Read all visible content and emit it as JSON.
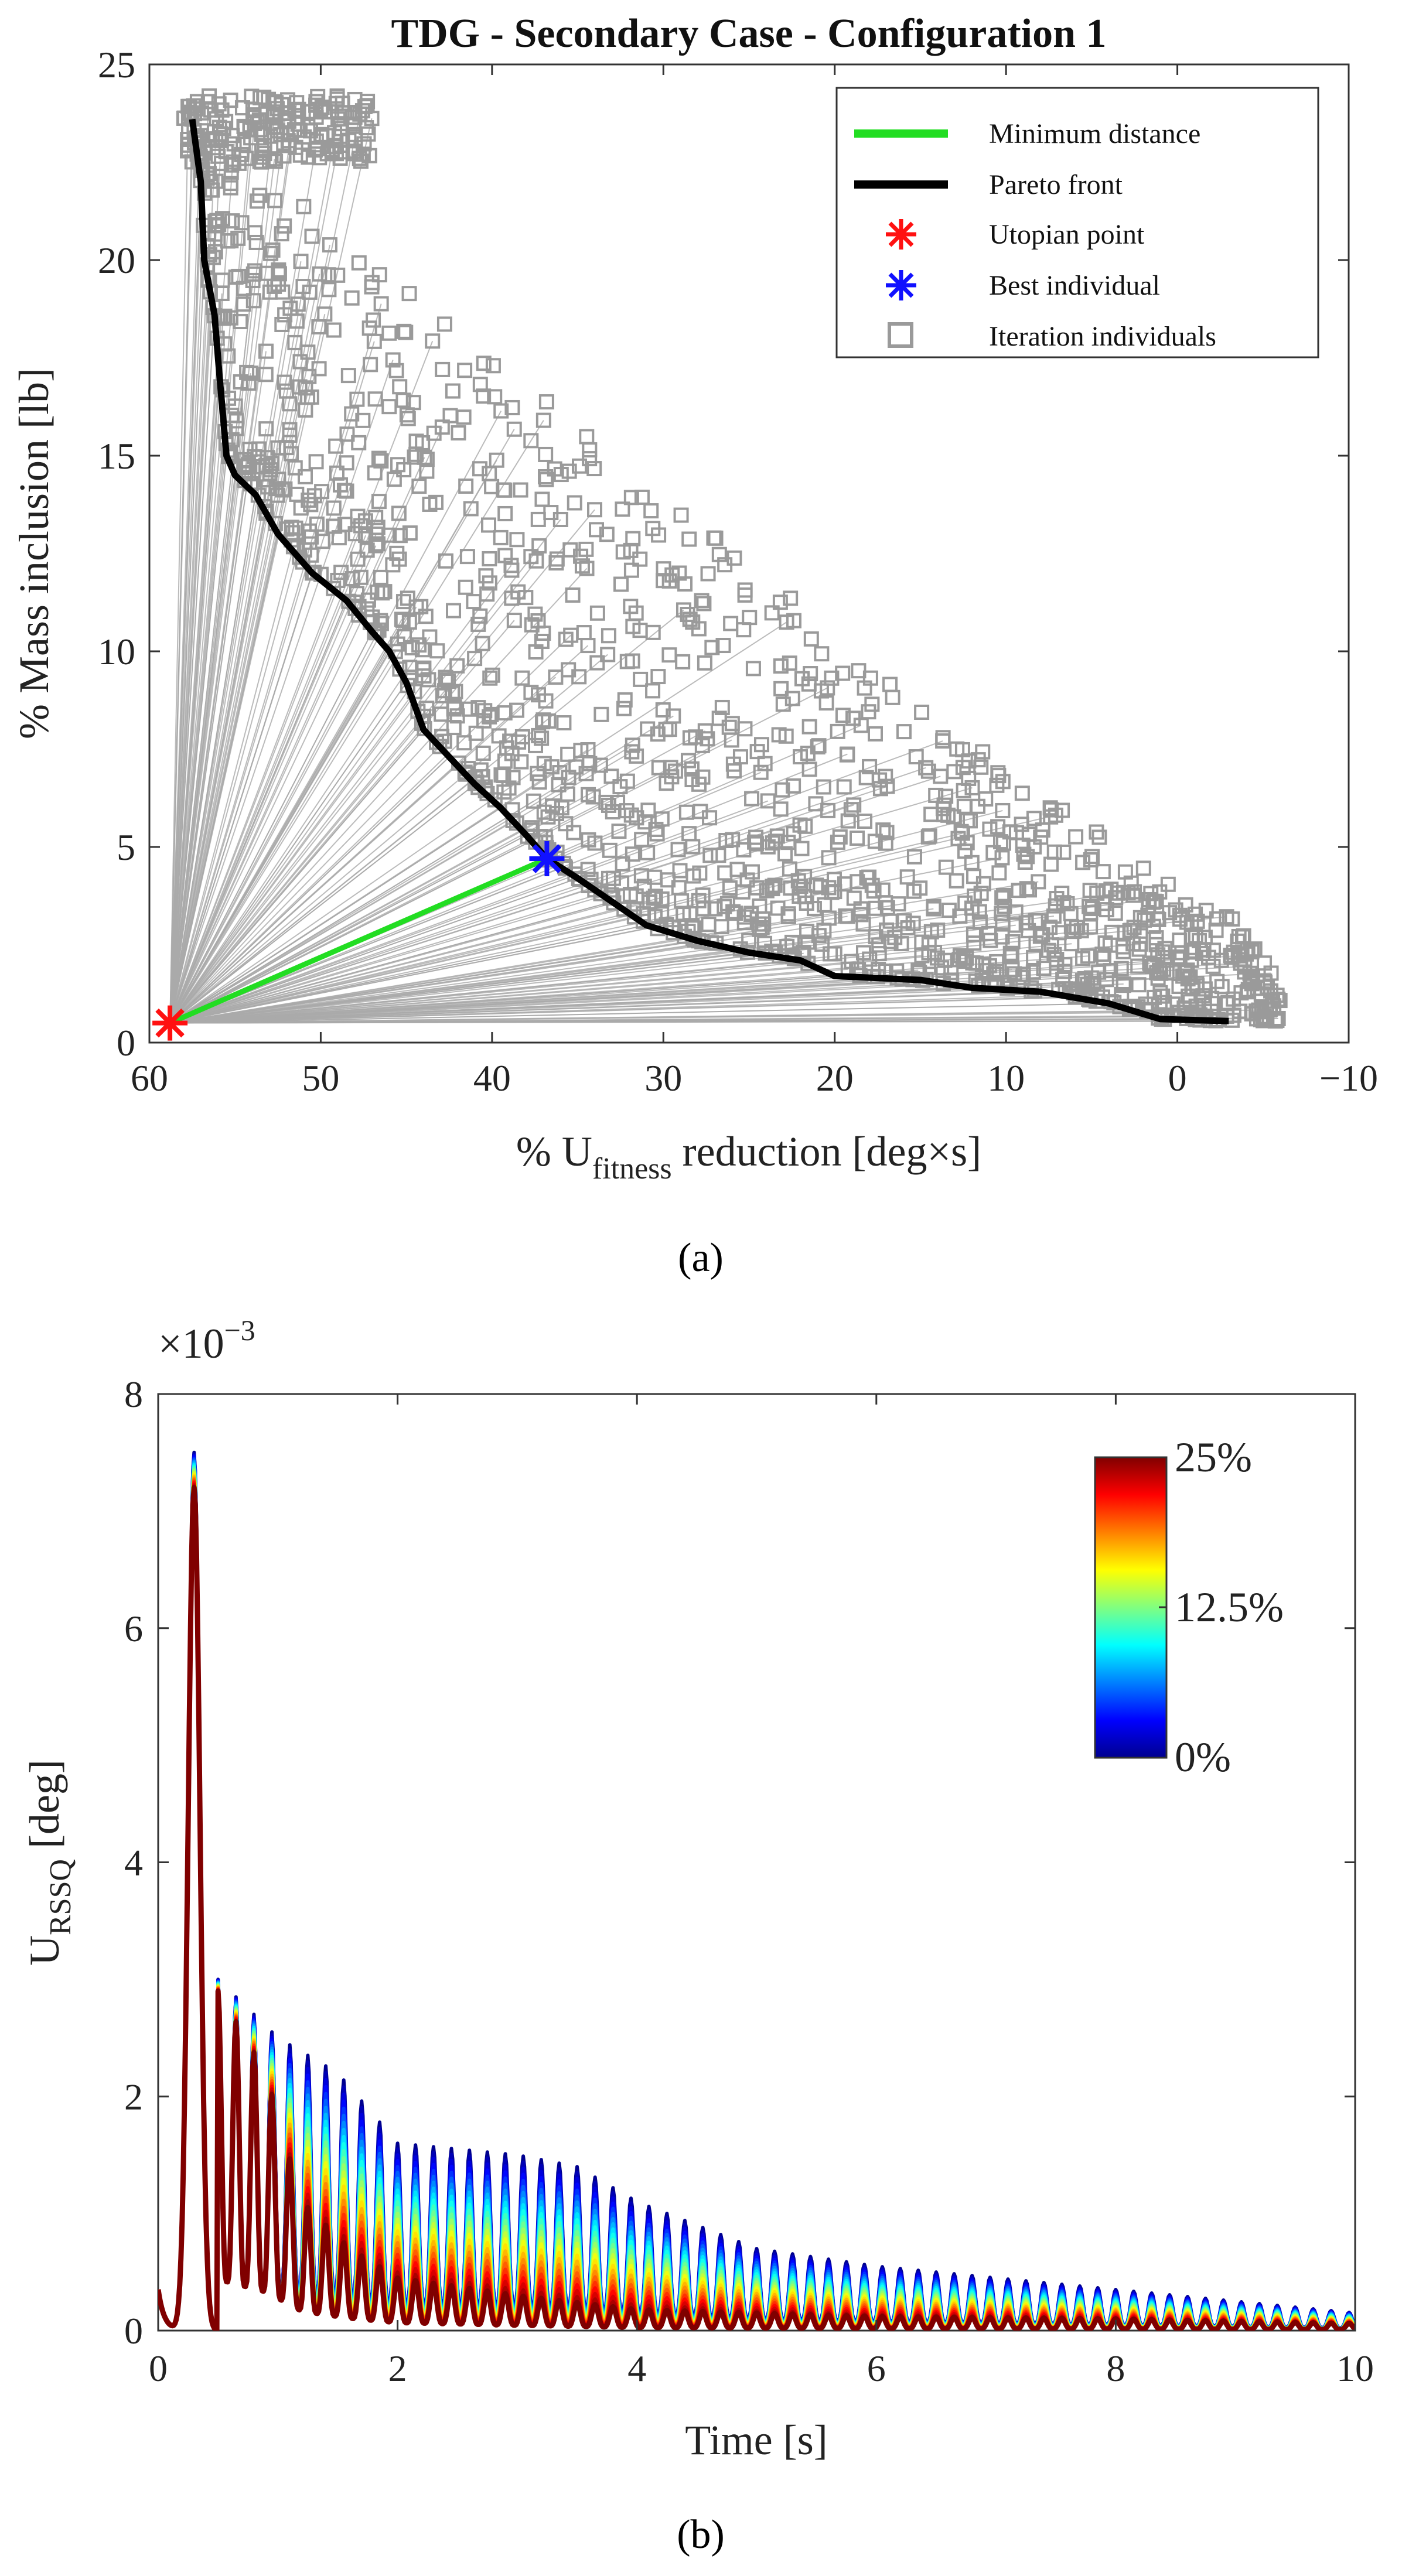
{
  "chart_data": [
    {
      "id": "a",
      "type": "scatter",
      "title": "TDG - Secondary Case - Configuration 1",
      "xlabel_prefix": "% U",
      "xlabel_sub": "fitness",
      "xlabel_suffix": " reduction [deg×s]",
      "ylabel": "% Mass inclusion [lb]",
      "xlim": [
        60,
        -10
      ],
      "ylim": [
        0,
        25
      ],
      "xticks": [
        60,
        50,
        40,
        30,
        20,
        10,
        0,
        -10
      ],
      "xtick_labels": [
        "60",
        "50",
        "40",
        "30",
        "20",
        "10",
        "0",
        "−10"
      ],
      "yticks": [
        0,
        5,
        10,
        15,
        20,
        25
      ],
      "ytick_labels": [
        "0",
        "5",
        "10",
        "15",
        "20",
        "25"
      ],
      "legend": {
        "position": "top-right",
        "entries": [
          "Minimum distance",
          "Pareto front",
          "Utopian point",
          "Best individual",
          "Iteration individuals"
        ]
      },
      "colors": {
        "minimum_distance": "#22dd22",
        "pareto": "#000000",
        "utopian": "#ff1111",
        "best": "#1111ff",
        "individuals": "#9a9a9a",
        "rays": "#aaaaaa"
      },
      "utopian_point": {
        "x": 58.8,
        "y": 0.5
      },
      "best_individual": {
        "x": 36.8,
        "y": 4.7
      },
      "pareto_front": [
        [
          57.5,
          23.6
        ],
        [
          57.0,
          22.0
        ],
        [
          56.8,
          20.0
        ],
        [
          56.2,
          18.6
        ],
        [
          55.9,
          17.0
        ],
        [
          55.5,
          15.0
        ],
        [
          55.0,
          14.5
        ],
        [
          53.8,
          14.0
        ],
        [
          52.5,
          13.0
        ],
        [
          50.5,
          12.0
        ],
        [
          48.5,
          11.3
        ],
        [
          47.0,
          10.5
        ],
        [
          46.0,
          10.0
        ],
        [
          45.0,
          9.2
        ],
        [
          44.0,
          8.0
        ],
        [
          42.5,
          7.3
        ],
        [
          41.0,
          6.6
        ],
        [
          39.5,
          6.0
        ],
        [
          38.0,
          5.3
        ],
        [
          36.8,
          4.7
        ],
        [
          35.0,
          4.2
        ],
        [
          33.0,
          3.6
        ],
        [
          31.0,
          3.0
        ],
        [
          28.0,
          2.6
        ],
        [
          25.0,
          2.3
        ],
        [
          22.0,
          2.1
        ],
        [
          20.0,
          1.7
        ],
        [
          15.0,
          1.6
        ],
        [
          12.0,
          1.4
        ],
        [
          8.0,
          1.3
        ],
        [
          4.0,
          1.0
        ],
        [
          1.0,
          0.6
        ],
        [
          -3.0,
          0.55
        ]
      ],
      "individuals_model": {
        "count": 1400,
        "x_range": [
          -6,
          58
        ],
        "y_max": 24.2,
        "lower_bound": "pareto_front",
        "upper_envelope": [
          [
            58,
            24.2
          ],
          [
            50,
            21.0
          ],
          [
            40,
            17.5
          ],
          [
            30,
            14.0
          ],
          [
            20,
            10.5
          ],
          [
            10,
            7.0
          ],
          [
            0,
            4.0
          ],
          [
            -6,
            2.5
          ]
        ]
      }
    },
    {
      "id": "b",
      "type": "line",
      "xlabel": "Time [s]",
      "ylabel_main": "U",
      "ylabel_sub": "RSSQ",
      "ylabel_suffix": " [deg]",
      "exponent_label": "×10",
      "exponent_power": "−3",
      "xlim": [
        0,
        10
      ],
      "ylim": [
        0,
        8
      ],
      "xticks": [
        0,
        2,
        4,
        6,
        8,
        10
      ],
      "xtick_labels": [
        "0",
        "2",
        "4",
        "6",
        "8",
        "10"
      ],
      "yticks": [
        0,
        2,
        4,
        6,
        8
      ],
      "ytick_labels": [
        "0",
        "2",
        "4",
        "6",
        "8"
      ],
      "series_count": 24,
      "series_param_range": [
        "0%",
        "25%"
      ],
      "model": {
        "first_peak": {
          "t": 0.3,
          "value": 7.5
        },
        "oscillation_period_s": 0.15,
        "envelope_0pct": [
          [
            0.5,
            3.0
          ],
          [
            1.0,
            2.5
          ],
          [
            1.5,
            2.2
          ],
          [
            2.0,
            1.6
          ],
          [
            3.0,
            1.5
          ],
          [
            3.5,
            1.4
          ],
          [
            4.0,
            1.1
          ],
          [
            5.0,
            0.7
          ],
          [
            6.0,
            0.55
          ],
          [
            7.0,
            0.45
          ],
          [
            8.0,
            0.35
          ],
          [
            9.0,
            0.25
          ],
          [
            10.0,
            0.15
          ]
        ],
        "envelope_25pct": [
          [
            0.5,
            2.9
          ],
          [
            0.9,
            2.2
          ],
          [
            1.2,
            1.1
          ],
          [
            1.6,
            0.7
          ],
          [
            2.0,
            0.45
          ],
          [
            3.0,
            0.3
          ],
          [
            4.0,
            0.18
          ],
          [
            6.0,
            0.12
          ],
          [
            8.0,
            0.1
          ],
          [
            10.0,
            0.06
          ]
        ]
      },
      "colorbar": {
        "labels": [
          "25%",
          "12.5%",
          "0%"
        ],
        "colors": [
          "#00008f",
          "#0000ff",
          "#0080ff",
          "#00ffff",
          "#80ff80",
          "#ffff00",
          "#ff8000",
          "#ff0000",
          "#800000"
        ]
      }
    }
  ],
  "captions": {
    "a": "(a)",
    "b": "(b)"
  }
}
